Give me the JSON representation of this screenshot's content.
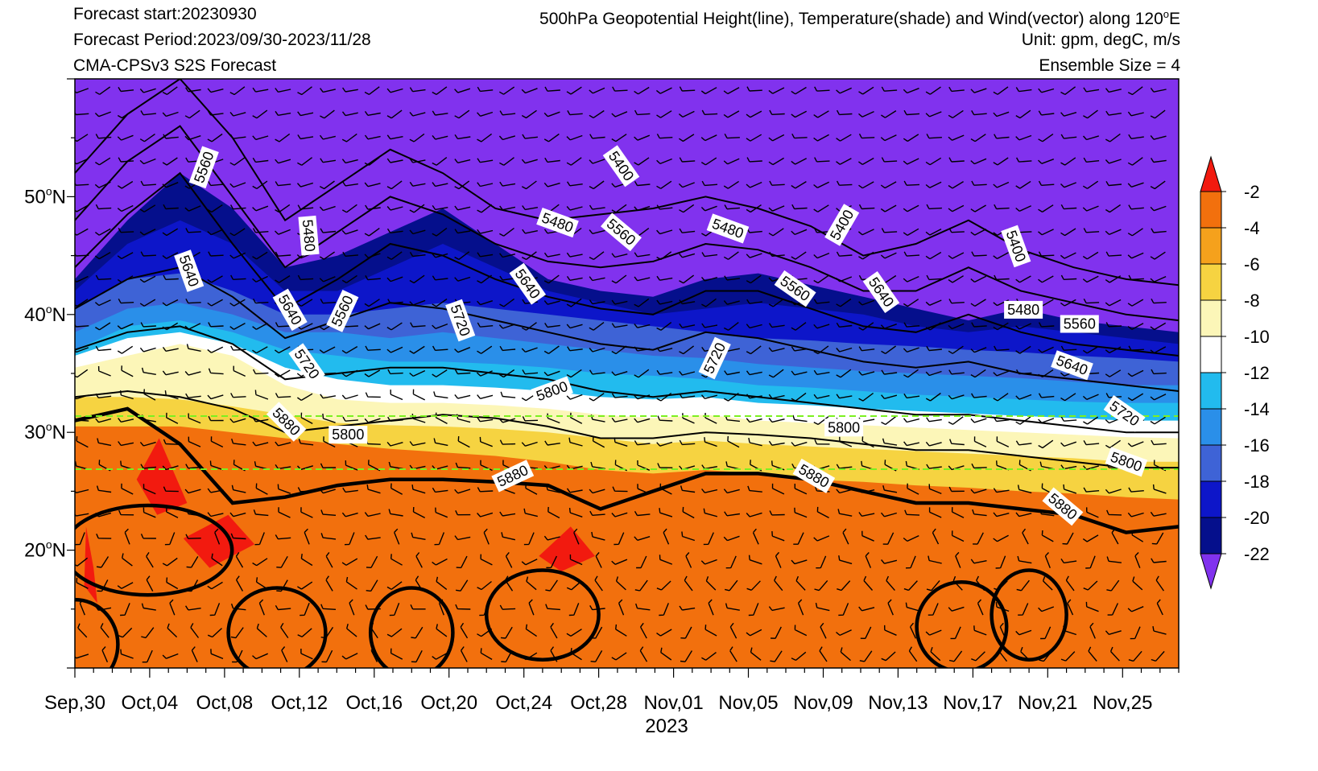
{
  "header": {
    "forecast_start": "Forecast start:20230930",
    "forecast_period": "Forecast Period:2023/09/30-2023/11/28",
    "model": "CMA-CPSv3 S2S Forecast",
    "title_prefix": "500hPa Geopotential Height(line), Temperature(shade) and Wind(vector) along 120",
    "title_sup": "o",
    "title_suffix": "E",
    "unit": "Unit: gpm, degC, m/s",
    "ensemble": "Ensemble Size = 4"
  },
  "chart_data": {
    "type": "heatmap",
    "xlabel": "2023",
    "ylabel": "",
    "x_range": [
      "2023-09-30",
      "2023-11-28"
    ],
    "ylim": [
      10,
      60
    ],
    "x_ticks": [
      "Sep,30",
      "Oct,04",
      "Oct,08",
      "Oct,12",
      "Oct,16",
      "Oct,20",
      "Oct,24",
      "Oct,28",
      "Nov,01",
      "Nov,05",
      "Nov,09",
      "Nov,13",
      "Nov,17",
      "Nov,21",
      "Nov,25"
    ],
    "y_ticks": [
      {
        "value": 20,
        "label": "20",
        "sup": "o",
        "suffix": "N"
      },
      {
        "value": 30,
        "label": "30",
        "sup": "o",
        "suffix": "N"
      },
      {
        "value": 40,
        "label": "40",
        "sup": "o",
        "suffix": "N"
      },
      {
        "value": 50,
        "label": "50",
        "sup": "o",
        "suffix": "N"
      }
    ],
    "colorbar": {
      "levels": [
        -2,
        -4,
        -6,
        -8,
        -10,
        -12,
        -14,
        -16,
        -18,
        -20,
        -22
      ],
      "colors": [
        "#f21a0f",
        "#f2700d",
        "#f5a11c",
        "#f6d341",
        "#fcf6b8",
        "#ffffff",
        "#22bbee",
        "#2a8fe9",
        "#3e63d6",
        "#0d16c9",
        "#050f8c",
        "#8132ee"
      ]
    },
    "temperature_boundaries_lat": [
      {
        "level": -6,
        "lat": [
          30.5,
          30.5,
          30.5,
          30.0,
          29.5,
          29.0,
          28.6,
          28.3,
          28.0,
          27.5,
          26.8,
          26.5,
          26.8,
          26.5,
          26.0,
          25.8,
          25.5,
          25.3,
          25.0,
          24.8,
          24.5,
          24.3
        ]
      },
      {
        "level": -8,
        "lat": [
          33.0,
          33.0,
          32.8,
          32.2,
          31.5,
          30.8,
          30.6,
          30.5,
          30.3,
          30.0,
          29.5,
          29.0,
          29.3,
          29.0,
          28.8,
          28.6,
          28.4,
          28.2,
          28.0,
          27.8,
          27.5,
          27.5
        ]
      },
      {
        "level": -10,
        "lat": [
          35.5,
          36.5,
          37.5,
          36.5,
          34.0,
          32.8,
          32.5,
          32.5,
          32.3,
          32.0,
          31.5,
          31.2,
          31.5,
          31.0,
          30.8,
          30.6,
          30.4,
          30.2,
          30.0,
          29.8,
          29.6,
          29.5
        ]
      },
      {
        "level": -12,
        "lat": [
          36.5,
          38.0,
          38.5,
          37.5,
          35.5,
          34.5,
          34.0,
          34.0,
          33.8,
          33.5,
          33.0,
          32.8,
          33.0,
          32.5,
          32.3,
          32.0,
          31.8,
          31.6,
          31.4,
          31.2,
          31.0,
          31.0
        ]
      },
      {
        "level": -14,
        "lat": [
          37.0,
          39.0,
          39.5,
          38.5,
          37.0,
          36.5,
          36.0,
          36.0,
          35.8,
          35.5,
          35.0,
          34.8,
          34.5,
          34.0,
          33.8,
          33.5,
          33.2,
          33.0,
          32.8,
          32.6,
          32.5,
          32.5
        ]
      },
      {
        "level": -16,
        "lat": [
          38.5,
          40.5,
          41.0,
          40.0,
          38.5,
          38.5,
          38.0,
          38.5,
          38.0,
          37.5,
          37.0,
          36.5,
          36.3,
          35.8,
          35.5,
          35.2,
          35.0,
          34.8,
          34.6,
          34.3,
          34.0,
          34.0
        ]
      },
      {
        "level": -18,
        "lat": [
          40.5,
          43.0,
          43.5,
          42.0,
          40.0,
          40.0,
          40.5,
          41.0,
          40.5,
          40.0,
          39.5,
          39.0,
          38.5,
          38.0,
          37.8,
          37.5,
          37.3,
          37.0,
          36.8,
          36.5,
          36.3,
          36.0
        ]
      },
      {
        "level": -20,
        "lat": [
          42.0,
          46.0,
          48.0,
          46.0,
          42.0,
          42.0,
          44.0,
          46.0,
          44.0,
          42.0,
          41.0,
          40.0,
          40.5,
          41.0,
          40.5,
          40.0,
          39.0,
          38.5,
          39.0,
          38.5,
          38.0,
          37.5
        ]
      },
      {
        "level": -22,
        "lat": [
          43.0,
          48.0,
          52.0,
          49.0,
          44.0,
          45.0,
          47.0,
          49.0,
          46.0,
          43.0,
          42.0,
          41.5,
          43.0,
          43.5,
          42.5,
          41.5,
          40.5,
          39.5,
          40.5,
          39.5,
          39.0,
          38.5
        ]
      }
    ],
    "height_contours": [
      {
        "value": 5880,
        "lat": [
          31.0,
          32.0,
          29.0,
          24.0,
          24.5,
          25.5,
          26.0,
          26.0,
          25.8,
          25.5,
          23.5,
          25.0,
          26.5,
          26.5,
          26.0,
          25.0,
          24.0,
          24.0,
          23.5,
          23.0,
          21.5,
          22.0
        ]
      },
      {
        "value": 5800,
        "lat": [
          33.0,
          33.5,
          33.0,
          32.0,
          30.0,
          30.5,
          31.0,
          31.5,
          31.2,
          30.5,
          29.5,
          29.5,
          30.0,
          29.8,
          29.5,
          29.0,
          28.5,
          28.5,
          28.0,
          27.5,
          27.0,
          27.0
        ]
      },
      {
        "value": 5720,
        "lat": [
          37.0,
          38.5,
          39.0,
          37.5,
          34.5,
          35.0,
          35.5,
          35.5,
          35.0,
          34.5,
          33.5,
          33.0,
          33.5,
          33.0,
          32.5,
          32.0,
          31.5,
          31.5,
          31.0,
          30.5,
          30.0,
          30.0
        ]
      },
      {
        "value": 5640,
        "lat": [
          40.5,
          43.0,
          44.0,
          41.5,
          38.0,
          39.5,
          41.0,
          40.5,
          39.5,
          38.5,
          37.5,
          37.0,
          38.5,
          38.0,
          37.0,
          36.0,
          35.5,
          36.0,
          35.0,
          34.5,
          34.0,
          33.5
        ]
      },
      {
        "value": 5560,
        "lat": [
          44.0,
          48.5,
          52.0,
          46.0,
          40.5,
          43.0,
          46.0,
          45.0,
          43.0,
          41.5,
          40.5,
          40.0,
          42.0,
          42.0,
          40.5,
          39.0,
          38.5,
          40.0,
          38.5,
          37.5,
          37.0,
          36.5
        ]
      },
      {
        "value": 5480,
        "lat": [
          48.0,
          53.0,
          56.0,
          50.0,
          44.0,
          47.0,
          50.0,
          48.5,
          46.0,
          44.5,
          44.0,
          44.5,
          46.0,
          45.5,
          44.0,
          42.0,
          42.0,
          44.0,
          42.0,
          41.0,
          40.0,
          39.5
        ]
      },
      {
        "value": 5400,
        "lat": [
          52.0,
          57.0,
          60.0,
          55.0,
          48.0,
          51.0,
          54.0,
          52.0,
          49.0,
          48.0,
          48.5,
          49.0,
          50.0,
          49.0,
          47.5,
          45.0,
          46.0,
          48.0,
          45.5,
          44.0,
          43.0,
          42.5
        ]
      }
    ],
    "contour_labels": [
      {
        "text": "5560",
        "date_index": 6.9,
        "lat": 52.5,
        "rot": -70
      },
      {
        "text": "5640",
        "date_index": 6.1,
        "lat": 43.7,
        "rot": 70
      },
      {
        "text": "5480",
        "date_index": 12.5,
        "lat": 46.7,
        "rot": 85
      },
      {
        "text": "5640",
        "date_index": 11.5,
        "lat": 40.4,
        "rot": 60
      },
      {
        "text": "5560",
        "date_index": 14.3,
        "lat": 40.3,
        "rot": -65
      },
      {
        "text": "5720",
        "date_index": 12.4,
        "lat": 35.8,
        "rot": 55
      },
      {
        "text": "5880",
        "date_index": 11.3,
        "lat": 30.9,
        "rot": 45
      },
      {
        "text": "5800",
        "date_index": 14.6,
        "lat": 29.8,
        "rot": 0
      },
      {
        "text": "5720",
        "date_index": 20.6,
        "lat": 39.5,
        "rot": 70
      },
      {
        "text": "5640",
        "date_index": 24.2,
        "lat": 42.6,
        "rot": 55
      },
      {
        "text": "5480",
        "date_index": 25.8,
        "lat": 47.8,
        "rot": 20
      },
      {
        "text": "5800",
        "date_index": 25.5,
        "lat": 33.5,
        "rot": -20
      },
      {
        "text": "5880",
        "date_index": 23.4,
        "lat": 26.3,
        "rot": -25
      },
      {
        "text": "5400",
        "date_index": 29.2,
        "lat": 52.6,
        "rot": 55
      },
      {
        "text": "5560",
        "date_index": 29.2,
        "lat": 47.0,
        "rot": 40
      },
      {
        "text": "5480",
        "date_index": 34.9,
        "lat": 47.3,
        "rot": 20
      },
      {
        "text": "5720",
        "date_index": 34.2,
        "lat": 36.3,
        "rot": -65
      },
      {
        "text": "5560",
        "date_index": 38.5,
        "lat": 42.2,
        "rot": 35
      },
      {
        "text": "5400",
        "date_index": 41.0,
        "lat": 47.6,
        "rot": -60
      },
      {
        "text": "5640",
        "date_index": 43.1,
        "lat": 41.9,
        "rot": 55
      },
      {
        "text": "5800",
        "date_index": 41.1,
        "lat": 30.4,
        "rot": 0
      },
      {
        "text": "5880",
        "date_index": 39.5,
        "lat": 26.3,
        "rot": 30
      },
      {
        "text": "5400",
        "date_index": 50.3,
        "lat": 45.8,
        "rot": 70
      },
      {
        "text": "5480",
        "date_index": 50.7,
        "lat": 40.4,
        "rot": 0
      },
      {
        "text": "5560",
        "date_index": 53.7,
        "lat": 39.2,
        "rot": 0
      },
      {
        "text": "5640",
        "date_index": 53.3,
        "lat": 35.7,
        "rot": 20
      },
      {
        "text": "5720",
        "date_index": 56.1,
        "lat": 31.6,
        "rot": 35
      },
      {
        "text": "5800",
        "date_index": 56.2,
        "lat": 27.5,
        "rot": 20
      },
      {
        "text": "5880",
        "date_index": 52.8,
        "lat": 23.7,
        "rot": 40
      }
    ]
  }
}
